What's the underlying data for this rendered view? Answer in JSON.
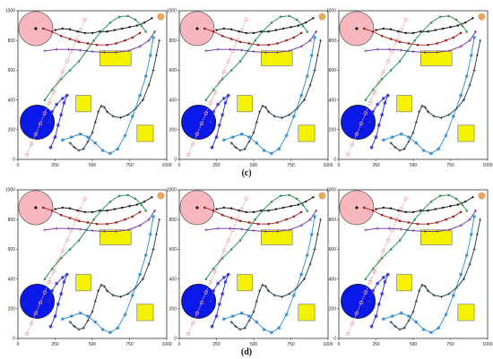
{
  "figure": {
    "captions": [
      "(c)",
      "(d)"
    ],
    "axis": {
      "xlim": [
        0,
        1000
      ],
      "ylim": [
        0,
        1000
      ],
      "xticks": [
        "0",
        "250",
        "500",
        "750",
        "1000"
      ],
      "yticks": [
        "0",
        "200",
        "400",
        "600",
        "800",
        "1000"
      ]
    },
    "colors": {
      "pink_circle": "#f6b8bc",
      "blue_circle": "#0b19e8",
      "yellow_box": "#f5f200",
      "orange_dot": "#e7a760",
      "pink_path": "#e8a0a8",
      "black_path": "#111111",
      "red_path": "#a0201e",
      "purple_path": "#6a2b9a",
      "green_path": "#1f8a4a",
      "dark_path": "#1c3340",
      "light_blue_path": "#2a8bd0",
      "blue_star_path": "#2a2ad8"
    },
    "obstacles": {
      "pink_circle": {
        "cx": 120,
        "cy": 880,
        "r": 115
      },
      "blue_circle": {
        "cx": 130,
        "cy": 250,
        "r": 115
      },
      "yellow_boxes": [
        {
          "x0": 550,
          "x1": 760,
          "y0": 630,
          "y1": 730
        },
        {
          "x0": 390,
          "x1": 490,
          "y0": 320,
          "y1": 430
        },
        {
          "x0": 800,
          "x1": 910,
          "y0": 120,
          "y1": 230
        }
      ],
      "orange_dot": {
        "cx": 960,
        "cy": 960
      }
    },
    "paths": {
      "pink": [
        [
          60,
          30
        ],
        [
          90,
          100
        ],
        [
          120,
          170
        ],
        [
          150,
          240
        ],
        [
          180,
          310
        ],
        [
          210,
          380
        ],
        [
          240,
          450
        ],
        [
          270,
          520
        ],
        [
          300,
          590
        ],
        [
          330,
          660
        ],
        [
          360,
          730
        ],
        [
          390,
          800
        ],
        [
          420,
          870
        ],
        [
          450,
          940
        ]
      ],
      "black": [
        [
          250,
          870
        ],
        [
          300,
          880
        ],
        [
          350,
          875
        ],
        [
          400,
          860
        ],
        [
          450,
          850
        ],
        [
          500,
          850
        ],
        [
          550,
          860
        ],
        [
          600,
          860
        ],
        [
          650,
          870
        ],
        [
          700,
          880
        ],
        [
          750,
          890
        ],
        [
          800,
          900
        ],
        [
          850,
          920
        ],
        [
          900,
          950
        ]
      ],
      "red": [
        [
          170,
          880
        ],
        [
          230,
          860
        ],
        [
          290,
          830
        ],
        [
          350,
          810
        ],
        [
          410,
          790
        ],
        [
          470,
          780
        ],
        [
          530,
          770
        ],
        [
          600,
          770
        ],
        [
          660,
          780
        ],
        [
          720,
          800
        ],
        [
          770,
          820
        ],
        [
          820,
          850
        ]
      ],
      "purple": [
        [
          180,
          730
        ],
        [
          260,
          740
        ],
        [
          340,
          740
        ],
        [
          420,
          735
        ],
        [
          500,
          725
        ],
        [
          580,
          720
        ],
        [
          660,
          720
        ],
        [
          740,
          730
        ],
        [
          820,
          760
        ],
        [
          880,
          800
        ],
        [
          920,
          860
        ]
      ],
      "green": [
        [
          180,
          400
        ],
        [
          230,
          470
        ],
        [
          290,
          540
        ],
        [
          350,
          600
        ],
        [
          410,
          660
        ],
        [
          460,
          730
        ],
        [
          510,
          800
        ],
        [
          560,
          860
        ],
        [
          620,
          920
        ],
        [
          680,
          960
        ],
        [
          740,
          965
        ],
        [
          790,
          940
        ],
        [
          830,
          900
        ],
        [
          860,
          860
        ]
      ],
      "dark": [
        [
          350,
          110
        ],
        [
          380,
          80
        ],
        [
          410,
          60
        ],
        [
          440,
          70
        ],
        [
          470,
          120
        ],
        [
          500,
          180
        ],
        [
          520,
          250
        ],
        [
          540,
          320
        ],
        [
          560,
          360
        ],
        [
          580,
          350
        ],
        [
          600,
          320
        ],
        [
          640,
          290
        ],
        [
          690,
          280
        ],
        [
          740,
          300
        ],
        [
          790,
          340
        ],
        [
          840,
          400
        ],
        [
          880,
          500
        ],
        [
          910,
          600
        ],
        [
          930,
          700
        ],
        [
          950,
          800
        ]
      ],
      "light_blue": [
        [
          300,
          130
        ],
        [
          360,
          150
        ],
        [
          420,
          170
        ],
        [
          470,
          150
        ],
        [
          520,
          110
        ],
        [
          570,
          60
        ],
        [
          620,
          40
        ],
        [
          670,
          70
        ],
        [
          720,
          160
        ],
        [
          770,
          290
        ],
        [
          820,
          430
        ],
        [
          860,
          560
        ],
        [
          890,
          700
        ],
        [
          910,
          820
        ]
      ],
      "blue_star": [
        [
          220,
          80
        ],
        [
          250,
          150
        ],
        [
          270,
          230
        ],
        [
          290,
          300
        ],
        [
          310,
          380
        ],
        [
          330,
          430
        ],
        [
          300,
          410
        ],
        [
          260,
          370
        ],
        [
          230,
          320
        ],
        [
          210,
          250
        ]
      ]
    }
  }
}
